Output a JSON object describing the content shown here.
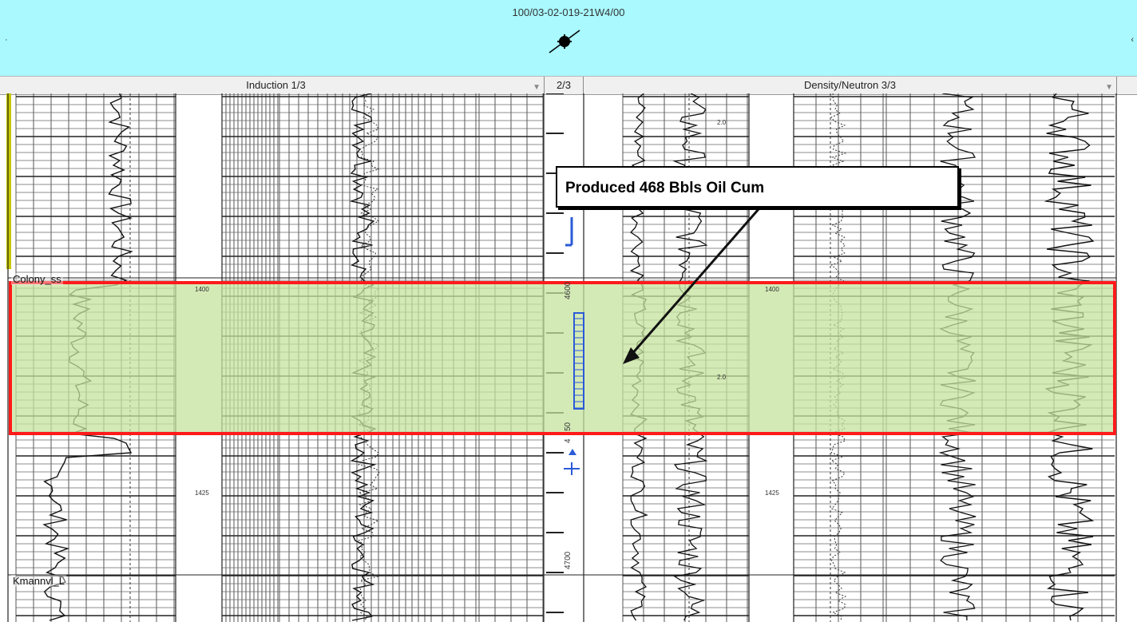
{
  "header": {
    "well_id": "100/03-02-019-21W4/00"
  },
  "tracks": [
    {
      "label": "Induction 1/3",
      "dropdown": "▼"
    },
    {
      "label": "2/3"
    },
    {
      "label": "Density/Neutron 3/3",
      "dropdown": "▼"
    }
  ],
  "depth_track": {
    "ticks": [
      "4600",
      "50",
      "4",
      "4700"
    ]
  },
  "log_depth_labels": {
    "induction": [
      "1400",
      "1425"
    ],
    "density": [
      "1400",
      "1425"
    ],
    "scale_marks": [
      "2.0",
      "2.0"
    ]
  },
  "formations": [
    {
      "name": "Colony_ss"
    },
    {
      "name": "Kmannvl_L"
    }
  ],
  "annotation": {
    "text": "Produced 468 Bbls Oil Cum"
  },
  "colors": {
    "header_bg": "#a9f9ff",
    "highlight_fill": "#c6e39e",
    "highlight_border": "#ff1a1a",
    "perf_marker": "#2a5bd7",
    "formation_marker": "#c8c800"
  }
}
